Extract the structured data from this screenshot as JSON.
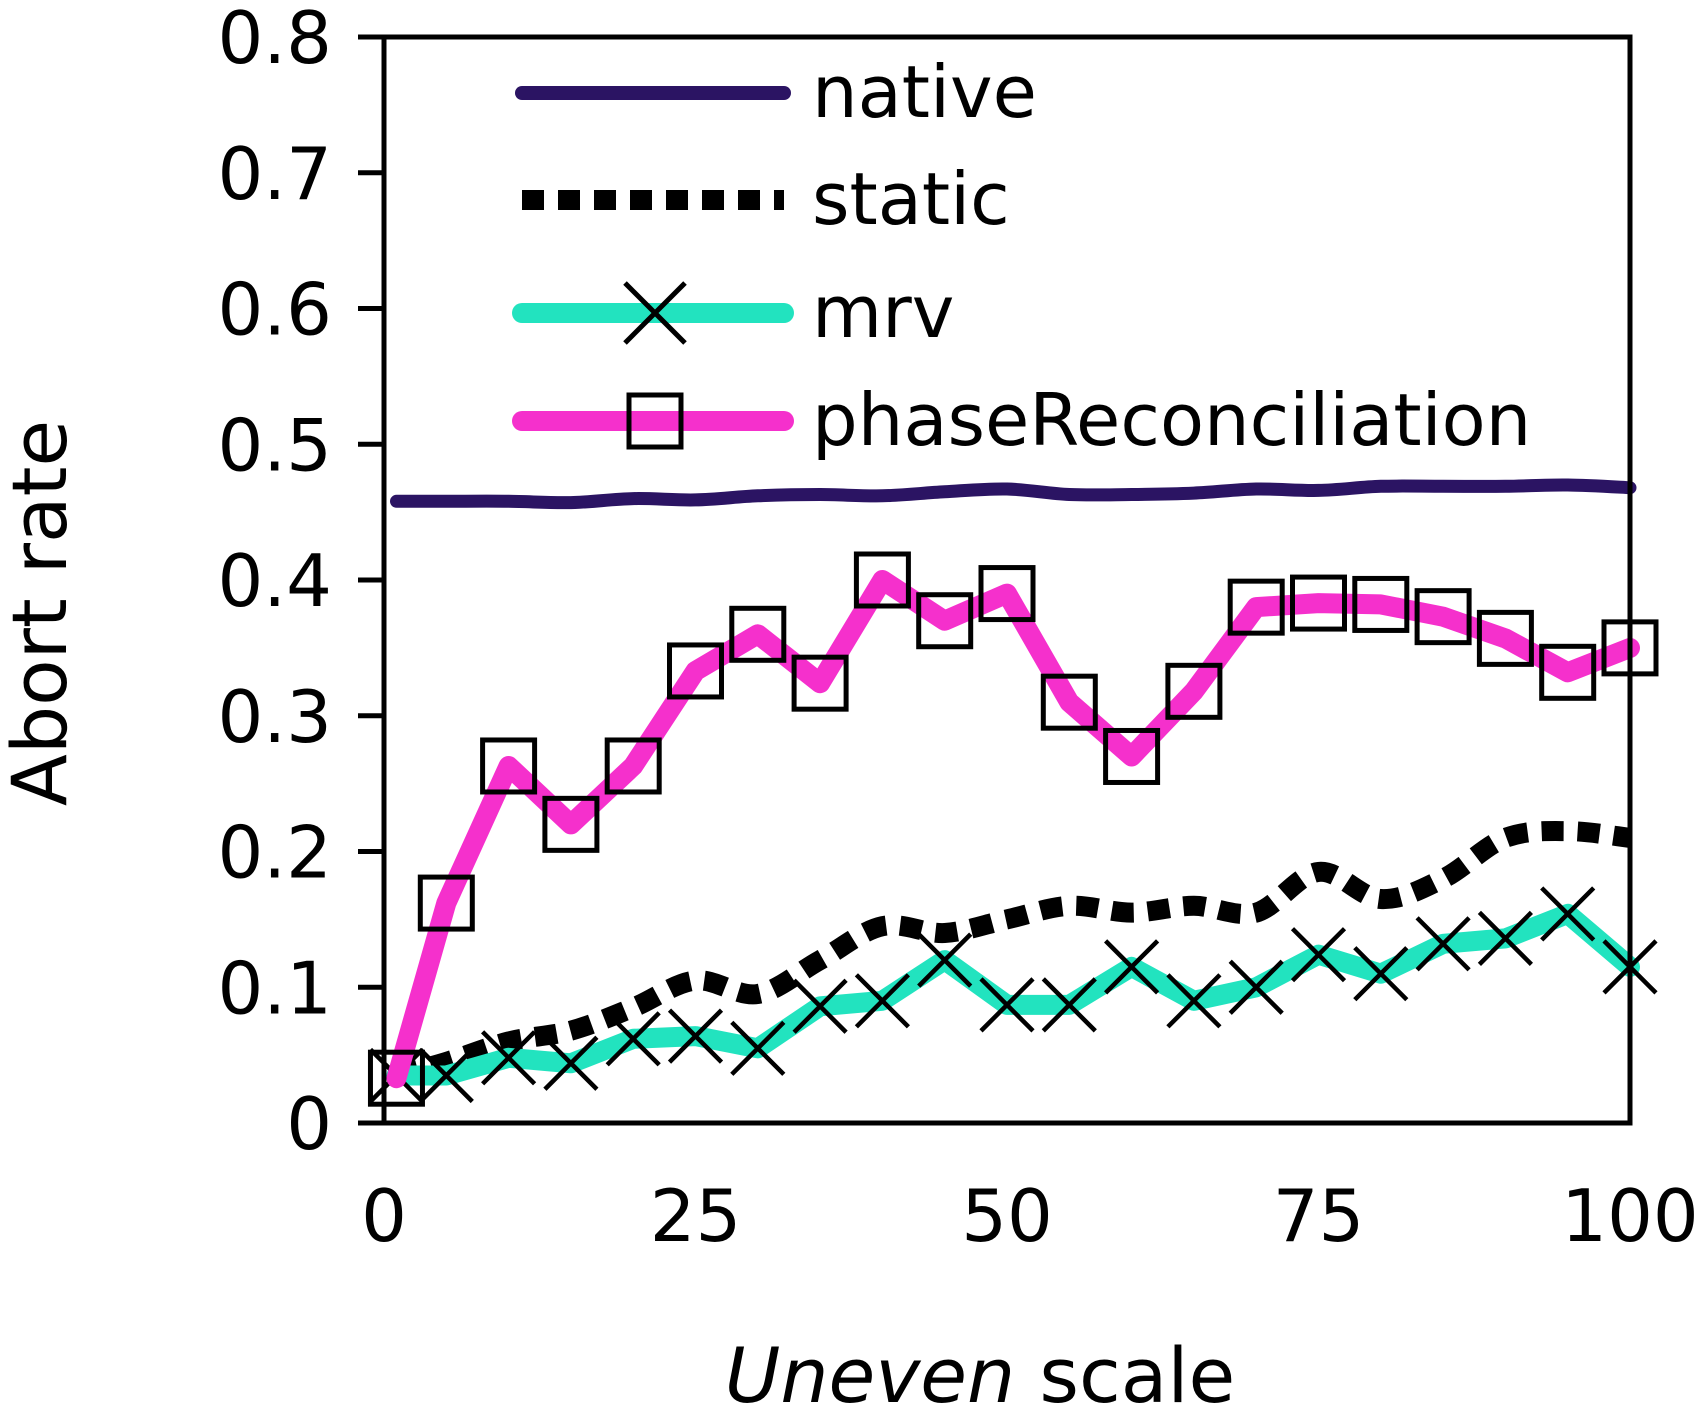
{
  "chart_data": {
    "type": "line",
    "title": "",
    "xlabel": {
      "italic": "Uneven",
      "normal": " scale"
    },
    "ylabel": "Abort rate",
    "xlim": [
      0,
      100
    ],
    "ylim": [
      0,
      0.8
    ],
    "xticks": [
      "0",
      "25",
      "50",
      "75",
      "100"
    ],
    "yticks": [
      "0",
      "0.1",
      "0.2",
      "0.3",
      "0.4",
      "0.5",
      "0.6",
      "0.7",
      "0.8"
    ],
    "grid": false,
    "legend_position": "top-right",
    "x": [
      1,
      5,
      10,
      15,
      20,
      25,
      30,
      35,
      40,
      45,
      50,
      55,
      60,
      65,
      70,
      75,
      80,
      85,
      90,
      95,
      100
    ],
    "series": [
      {
        "name": "native",
        "color": "#2b1463",
        "style": "solid",
        "marker": "none",
        "values": [
          0.458,
          0.458,
          0.458,
          0.457,
          0.46,
          0.459,
          0.462,
          0.463,
          0.462,
          0.465,
          0.467,
          0.463,
          0.463,
          0.464,
          0.467,
          0.466,
          0.469,
          0.469,
          0.469,
          0.47,
          0.468
        ]
      },
      {
        "name": "static",
        "color": "#000000",
        "style": "dotted",
        "marker": "none",
        "values": [
          0.035,
          0.045,
          0.06,
          0.068,
          0.085,
          0.105,
          0.095,
          0.12,
          0.145,
          0.14,
          0.15,
          0.16,
          0.155,
          0.16,
          0.155,
          0.185,
          0.165,
          0.18,
          0.21,
          0.215,
          0.21
        ]
      },
      {
        "name": "mrv",
        "color": "#22e3bf",
        "style": "solid",
        "marker": "x",
        "values": [
          0.035,
          0.035,
          0.048,
          0.044,
          0.062,
          0.064,
          0.055,
          0.086,
          0.09,
          0.12,
          0.087,
          0.087,
          0.115,
          0.09,
          0.1,
          0.124,
          0.11,
          0.132,
          0.136,
          0.154,
          0.115
        ]
      },
      {
        "name": "phaseReconciliation",
        "color": "#f530cc",
        "style": "solid",
        "marker": "square",
        "values": [
          0.033,
          0.162,
          0.263,
          0.22,
          0.263,
          0.333,
          0.36,
          0.324,
          0.4,
          0.37,
          0.39,
          0.31,
          0.27,
          0.318,
          0.38,
          0.383,
          0.382,
          0.373,
          0.357,
          0.332,
          0.35
        ]
      }
    ]
  }
}
